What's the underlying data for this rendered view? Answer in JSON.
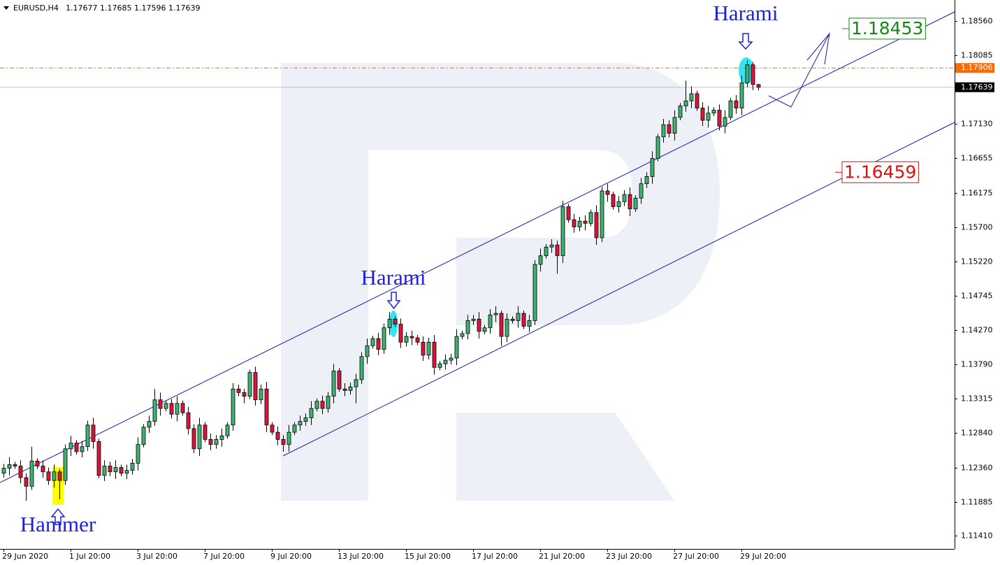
{
  "chart_data": {
    "type": "candlestick",
    "title": "EURUSD,H4",
    "categories": [
      "29 Jun 2020",
      null,
      null,
      null,
      null,
      null,
      null,
      null,
      null,
      null,
      null,
      null,
      "1 Jul 20:00",
      null,
      null,
      null,
      null,
      null,
      null,
      null,
      null,
      null,
      null,
      null,
      "3 Jul 20:00",
      null,
      null,
      null,
      null,
      null,
      null,
      null,
      null,
      null,
      null,
      null,
      "7 Jul 20:00",
      null,
      null,
      null,
      null,
      null,
      null,
      null,
      null,
      null,
      null,
      null,
      "9 Jul 20:00",
      null,
      null,
      null,
      null,
      null,
      null,
      null,
      null,
      null,
      null,
      null,
      "13 Jul 20:00",
      null,
      null,
      null,
      null,
      null,
      null,
      null,
      null,
      null,
      null,
      null,
      "15 Jul 20:00",
      null,
      null,
      null,
      null,
      null,
      null,
      null,
      null,
      null,
      null,
      null,
      "17 Jul 20:00",
      null,
      null,
      null,
      null,
      null,
      null,
      null,
      null,
      null,
      null,
      null,
      "21 Jul 20:00",
      null,
      null,
      null,
      null,
      null,
      null,
      null,
      null,
      null,
      null,
      null,
      "23 Jul 20:00",
      null,
      null,
      null,
      null,
      null,
      null,
      null,
      null,
      null,
      null,
      null,
      "27 Jul 20:00",
      null,
      null,
      null,
      null,
      null,
      null,
      null,
      null,
      null,
      null,
      null,
      "29 Jul 20:00",
      null,
      null,
      null
    ],
    "open": [
      1.1228,
      1.1235,
      1.124,
      1.1238,
      1.1222,
      1.121,
      1.1245,
      1.1238,
      1.123,
      1.1218,
      1.123,
      1.1218,
      1.1262,
      1.127,
      1.1258,
      1.1265,
      1.1295,
      1.1272,
      1.1225,
      1.1238,
      1.123,
      1.1236,
      1.1228,
      1.1232,
      1.1242,
      1.1268,
      1.1292,
      1.13,
      1.133,
      1.1318,
      1.1325,
      1.131,
      1.1325,
      1.1312,
      1.129,
      1.1262,
      1.1295,
      1.1275,
      1.1268,
      1.1275,
      1.128,
      1.1295,
      1.1345,
      1.134,
      1.1335,
      1.1368,
      1.133,
      1.1345,
      1.1295,
      1.1285,
      1.1275,
      1.1268,
      1.1285,
      1.1295,
      1.13,
      1.1305,
      1.1318,
      1.1328,
      1.1318,
      1.1335,
      1.137,
      1.1345,
      1.1343,
      1.1348,
      1.1358,
      1.139,
      1.1405,
      1.1415,
      1.14,
      1.143,
      1.1442,
      1.1435,
      1.141,
      1.1418,
      1.1416,
      1.141,
      1.1392,
      1.141,
      1.1375,
      1.138,
      1.1385,
      1.1388,
      1.1418,
      1.1422,
      1.144,
      1.1442,
      1.1425,
      1.143,
      1.1448,
      1.145,
      1.1418,
      1.1442,
      1.144,
      1.145,
      1.1432,
      1.144,
      1.1518,
      1.153,
      1.1542,
      1.1545,
      1.153,
      1.1598,
      1.158,
      1.157,
      1.1578,
      1.1575,
      1.159,
      1.1555,
      1.162,
      1.1615,
      1.1598,
      1.1605,
      1.1615,
      1.1595,
      1.161,
      1.163,
      1.164,
      1.1665,
      1.1695,
      1.1712,
      1.17,
      1.1722,
      1.1738,
      1.1745,
      1.1755,
      1.1735,
      1.1718,
      1.1728,
      1.1732,
      1.171,
      1.1722,
      1.1745,
      1.1735,
      1.177,
      1.1795,
      1.17677
    ],
    "high": [
      1.1241,
      1.125,
      1.1244,
      1.1246,
      1.1228,
      1.1265,
      1.1249,
      1.1246,
      1.1236,
      1.124,
      1.1234,
      1.1268,
      1.128,
      1.1274,
      1.1273,
      1.1301,
      1.1305,
      1.1276,
      1.1246,
      1.1244,
      1.1246,
      1.124,
      1.124,
      1.1248,
      1.1278,
      1.1296,
      1.1308,
      1.1345,
      1.134,
      1.1329,
      1.1331,
      1.1335,
      1.1329,
      1.132,
      1.1296,
      1.1305,
      1.1299,
      1.1283,
      1.1281,
      1.129,
      1.1299,
      1.1353,
      1.1351,
      1.1345,
      1.1372,
      1.1376,
      1.1351,
      1.1355,
      1.1299,
      1.1293,
      1.1281,
      1.1295,
      1.1299,
      1.1308,
      1.1311,
      1.1328,
      1.1332,
      1.1336,
      1.1341,
      1.138,
      1.1374,
      1.1353,
      1.1354,
      1.1366,
      1.1396,
      1.1415,
      1.1419,
      1.1423,
      1.1436,
      1.1452,
      1.1446,
      1.1443,
      1.1424,
      1.1426,
      1.142,
      1.1418,
      1.1416,
      1.142,
      1.1384,
      1.1393,
      1.1394,
      1.1428,
      1.1426,
      1.1448,
      1.1448,
      1.1452,
      1.1434,
      1.1456,
      1.146,
      1.1454,
      1.145,
      1.1446,
      1.146,
      1.1454,
      1.1448,
      1.1524,
      1.154,
      1.1546,
      1.1553,
      1.1551,
      1.1606,
      1.1602,
      1.1588,
      1.1584,
      1.1586,
      1.1594,
      1.16,
      1.1626,
      1.163,
      1.1619,
      1.1613,
      1.1621,
      1.1625,
      1.1614,
      1.1638,
      1.1646,
      1.1675,
      1.1699,
      1.172,
      1.1718,
      1.1732,
      1.1742,
      1.1773,
      1.1765,
      1.1759,
      1.1743,
      1.1738,
      1.1736,
      1.174,
      1.1732,
      1.1749,
      1.1753,
      1.178,
      1.1801,
      1.1799,
      1.17685
    ],
    "low": [
      1.1222,
      1.1225,
      1.1234,
      1.1214,
      1.119,
      1.1205,
      1.1234,
      1.1222,
      1.1212,
      1.1208,
      1.1192,
      1.1212,
      1.1252,
      1.1254,
      1.125,
      1.1259,
      1.1262,
      1.1221,
      1.1217,
      1.1224,
      1.122,
      1.1224,
      1.122,
      1.1226,
      1.1232,
      1.1264,
      1.1284,
      1.1294,
      1.1308,
      1.1314,
      1.1304,
      1.13,
      1.1308,
      1.1282,
      1.1256,
      1.1252,
      1.1271,
      1.126,
      1.1262,
      1.1265,
      1.1276,
      1.1287,
      1.1335,
      1.1325,
      1.1331,
      1.1322,
      1.1324,
      1.1285,
      1.1281,
      1.1267,
      1.1258,
      1.1258,
      1.1281,
      1.1287,
      1.1294,
      1.1295,
      1.1314,
      1.131,
      1.1312,
      1.1325,
      1.1341,
      1.1335,
      1.1337,
      1.1325,
      1.1352,
      1.138,
      1.1401,
      1.1392,
      1.1394,
      1.142,
      1.1431,
      1.1402,
      1.1404,
      1.1406,
      1.1406,
      1.1384,
      1.1386,
      1.1365,
      1.1371,
      1.1372,
      1.1379,
      1.1378,
      1.1414,
      1.1414,
      1.1434,
      1.1415,
      1.1421,
      1.1422,
      1.1438,
      1.1405,
      1.141,
      1.1436,
      1.143,
      1.1428,
      1.1424,
      1.1434,
      1.1508,
      1.1526,
      1.1534,
      1.1505,
      1.152,
      1.1576,
      1.1562,
      1.1564,
      1.1565,
      1.1571,
      1.1545,
      1.1549,
      1.1605,
      1.1594,
      1.159,
      1.1599,
      1.1585,
      1.1591,
      1.1602,
      1.1624,
      1.163,
      1.1661,
      1.1687,
      1.1694,
      1.169,
      1.1718,
      1.173,
      1.1735,
      1.1731,
      1.171,
      1.1708,
      1.1724,
      1.1704,
      1.17,
      1.1718,
      1.1727,
      1.1725,
      1.1764,
      1.176,
      1.17596
    ],
    "close": [
      1.1235,
      1.124,
      1.1238,
      1.1222,
      1.121,
      1.1245,
      1.1238,
      1.123,
      1.1218,
      1.123,
      1.1218,
      1.1262,
      1.127,
      1.1258,
      1.1265,
      1.1295,
      1.1272,
      1.1225,
      1.1238,
      1.123,
      1.1236,
      1.1228,
      1.1232,
      1.1242,
      1.1268,
      1.1292,
      1.13,
      1.133,
      1.1318,
      1.1325,
      1.131,
      1.1325,
      1.1312,
      1.129,
      1.1262,
      1.1295,
      1.1275,
      1.1268,
      1.1275,
      1.128,
      1.1295,
      1.1345,
      1.134,
      1.1335,
      1.1368,
      1.133,
      1.1345,
      1.1295,
      1.1285,
      1.1275,
      1.1268,
      1.1285,
      1.1295,
      1.13,
      1.1305,
      1.1318,
      1.1328,
      1.1318,
      1.1335,
      1.137,
      1.1345,
      1.1343,
      1.1348,
      1.1358,
      1.139,
      1.1405,
      1.1415,
      1.14,
      1.143,
      1.1442,
      1.1435,
      1.141,
      1.1418,
      1.1416,
      1.141,
      1.1392,
      1.141,
      1.1375,
      1.138,
      1.1385,
      1.1388,
      1.1418,
      1.1422,
      1.144,
      1.1442,
      1.1425,
      1.143,
      1.1448,
      1.145,
      1.1418,
      1.1442,
      1.144,
      1.145,
      1.1432,
      1.144,
      1.1518,
      1.153,
      1.1542,
      1.1545,
      1.153,
      1.1598,
      1.158,
      1.157,
      1.1578,
      1.1575,
      1.159,
      1.1555,
      1.162,
      1.1615,
      1.1598,
      1.1605,
      1.1615,
      1.1595,
      1.161,
      1.163,
      1.164,
      1.1665,
      1.1695,
      1.1712,
      1.17,
      1.1722,
      1.1738,
      1.1745,
      1.1755,
      1.1735,
      1.1718,
      1.1728,
      1.1732,
      1.171,
      1.1722,
      1.1745,
      1.1735,
      1.177,
      1.1795,
      1.17677,
      1.17639
    ],
    "up_color": "#3cb371",
    "down_color": "#dc143c",
    "ylim": [
      1.1123,
      1.1885
    ],
    "yticks": [
      {
        "value": 1.1856,
        "label": "1.18560"
      },
      1.18085,
      {
        "value": 1.1713,
        "label": "1.17130"
      },
      1.16655,
      1.16175,
      {
        "value": 1.157,
        "label": "1.15700"
      },
      {
        "value": 1.1522,
        "label": "1.15220"
      },
      1.14745,
      {
        "value": 1.1427,
        "label": "1.14270"
      },
      {
        "value": 1.1379,
        "label": "1.13790"
      },
      1.13315,
      {
        "value": 1.1284,
        "label": "1.12840"
      },
      {
        "value": 1.1236,
        "label": "1.12360"
      },
      1.11885,
      {
        "value": 1.1141,
        "label": "1.11410"
      }
    ],
    "price_line": {
      "value": 1.17906,
      "color": "#ff6a00"
    },
    "targets": [
      {
        "value": 1.18453,
        "color": "#138a13"
      },
      {
        "value": 1.16459,
        "color": "#e01010"
      }
    ],
    "annotations": [
      "Harami",
      "Harami",
      "Hammer"
    ]
  }
}
